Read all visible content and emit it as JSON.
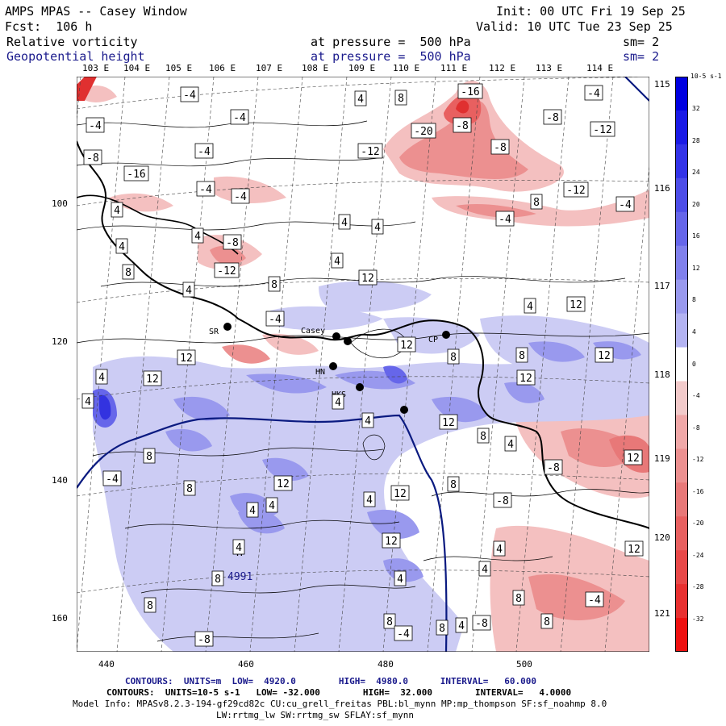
{
  "header": {
    "title": "AMPS MPAS -- Casey Window",
    "init": "Init: 00 UTC Fri 19 Sep 25",
    "forecast": "Fcst:  106 h",
    "valid": "Valid: 10 UTC Tue 23 Sep 25",
    "field1_name": "Relative vorticity",
    "field1_level": "at pressure =  500 hPa",
    "field1_sm": "sm= 2",
    "field2_name": "Geopotential height",
    "field2_level": "at pressure =  500 hPa",
    "field2_sm": "sm= 2"
  },
  "lon_labels": [
    "103 E",
    "104 E",
    "105 E",
    "106 E",
    "107 E",
    "108 E",
    "109 E",
    "110 E",
    "111 E",
    "112 E",
    "113 E",
    "114 E"
  ],
  "lat_labels": [
    "115 E",
    "116 E",
    "117 E",
    "118 E",
    "119 E",
    "120 E",
    "121 E"
  ],
  "y_axis": [
    "100",
    "120",
    "140",
    "160"
  ],
  "x_axis": [
    "440",
    "460",
    "480",
    "500"
  ],
  "stations": [
    "SR",
    "Casey",
    "HN",
    "HKS",
    "CP"
  ],
  "height_label": "4991",
  "high_marker": "H",
  "contour_labels": [
    "-4",
    "4",
    "8",
    "-4",
    "-16",
    "-4",
    "-8",
    "-12",
    "-20",
    "-8",
    "-4",
    "-8",
    "-4",
    "-8",
    "-12",
    "-16",
    "-4",
    "-4",
    "8",
    "-12",
    "4",
    "-4",
    "4",
    "4",
    "-4",
    "4",
    "-8",
    "4",
    "-12",
    "12",
    "4",
    "8",
    "8",
    "4",
    "-4",
    "4",
    "12",
    "12",
    "4",
    "12",
    "12",
    "8",
    "8",
    "12",
    "4",
    "12",
    "4",
    "12",
    "4",
    "4",
    "8",
    "-4",
    "12",
    "8",
    "4",
    "8",
    "4",
    "12",
    "8",
    "4",
    "12",
    "-8",
    "-8",
    "4",
    "8",
    "12",
    "4",
    "12",
    "-4",
    "8",
    "4",
    "-8",
    "4",
    "8",
    "4",
    "8",
    "8",
    "-8",
    "-4",
    "8"
  ],
  "colorbar": {
    "unit": "10-5 s-1",
    "ticks": [
      "32",
      "28",
      "24",
      "20",
      "16",
      "12",
      "8",
      "4",
      "0",
      "-4",
      "-8",
      "-12",
      "-16",
      "-20",
      "-24",
      "-28",
      "-32"
    ],
    "colors": [
      "#0000e0",
      "#1a1ae6",
      "#3333e8",
      "#4d4de8",
      "#6666ea",
      "#8080ec",
      "#9999ee",
      "#b3b3f2",
      "#ffffff",
      "#f2caca",
      "#f0a8a8",
      "#ec9090",
      "#e87878",
      "#e86060",
      "#e84848",
      "#e83030",
      "#ee1010"
    ]
  },
  "footer": {
    "line1": "CONTOURS:  UNITS=m  LOW=  4920.0        HIGH=  4980.0      INTERVAL=   60.000",
    "line2": "CONTOURS:  UNITS=10-5 s-1   LOW= -32.000        HIGH=  32.000        INTERVAL=   4.0000",
    "line3": "Model Info: MPASv8.2.3-194-gf29cd82c CU:cu_grell_freitas PBL:bl_mynn MP:mp_thompson SF:sf_noahmp 8.0",
    "line4": "LW:rrtmg_lw SW:rrtmg_sw SFLAY:sf_mynn"
  }
}
